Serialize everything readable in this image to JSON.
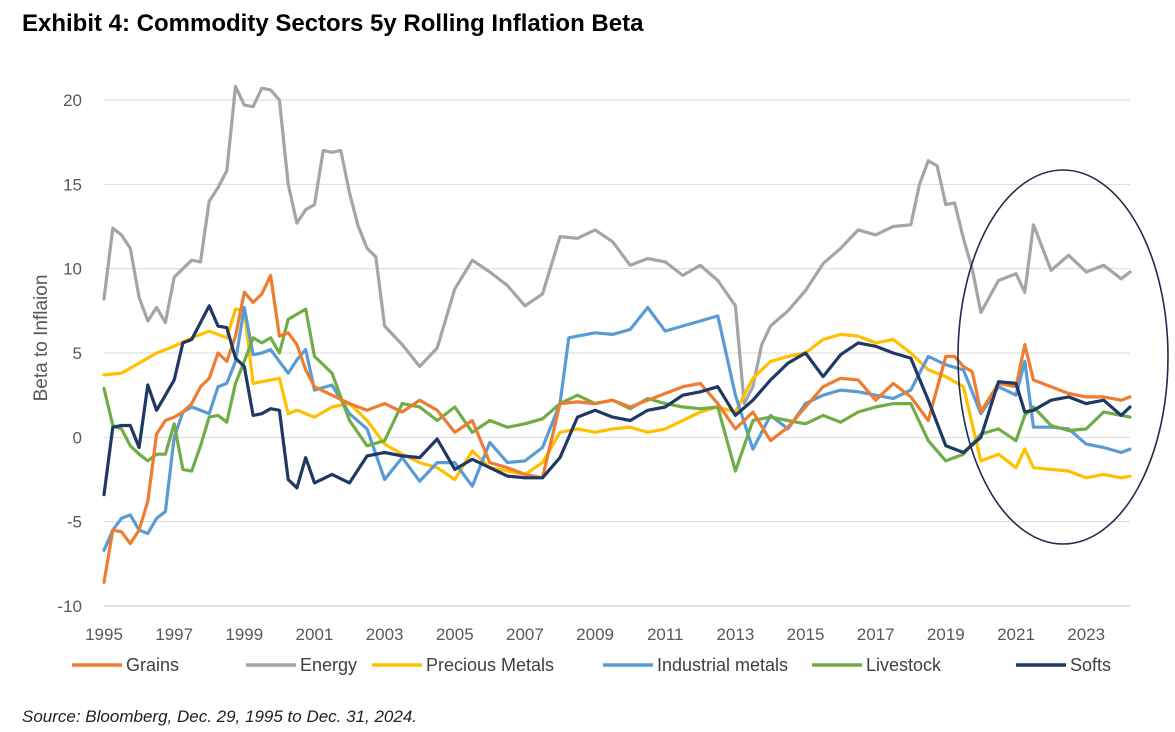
{
  "chart_data": {
    "type": "line",
    "title": "Exhibit 4: Commodity Sectors 5y Rolling Inflation Beta",
    "xlabel": "",
    "ylabel": "Beta to Inflaion",
    "source": "Source: Bloomberg, Dec. 29, 1995 to Dec. 31, 2024.",
    "xlim": [
      1995,
      2024.25
    ],
    "ylim": [
      -10,
      20
    ],
    "xticks": [
      "1995",
      "1997",
      "1999",
      "2001",
      "2003",
      "2005",
      "2007",
      "2009",
      "2011",
      "2013",
      "2015",
      "2017",
      "2019",
      "2021",
      "2023"
    ],
    "yticks": [
      "-10",
      "-5",
      "0",
      "5",
      "10",
      "15",
      "20"
    ],
    "grid": "horizontal",
    "legend_position": "bottom",
    "annotation": "ellipse highlighting 2019-2024 period",
    "series": [
      {
        "name": "Grains",
        "color": "#ED7D31",
        "x": [
          1995,
          1995.25,
          1995.5,
          1995.75,
          1996,
          1996.25,
          1996.5,
          1996.75,
          1997,
          1997.25,
          1997.5,
          1997.75,
          1998,
          1998.25,
          1998.5,
          1998.75,
          1999,
          1999.25,
          1999.5,
          1999.75,
          2000,
          2000.25,
          2000.5,
          2000.75,
          2001,
          2001.5,
          2002,
          2002.5,
          2003,
          2003.5,
          2004,
          2004.5,
          2005,
          2005.5,
          2006,
          2006.5,
          2007,
          2007.5,
          2008,
          2008.5,
          2009,
          2009.5,
          2010,
          2010.5,
          2011,
          2011.5,
          2012,
          2012.5,
          2013,
          2013.5,
          2014,
          2014.5,
          2015,
          2015.5,
          2016,
          2016.5,
          2017,
          2017.5,
          2018,
          2018.5,
          2019,
          2019.25,
          2019.5,
          2019.75,
          2020,
          2020.5,
          2021,
          2021.25,
          2021.5,
          2022,
          2022.5,
          2023,
          2023.5,
          2024,
          2024.25
        ],
        "values": [
          -8.6,
          -5.5,
          -5.6,
          -6.3,
          -5.5,
          -3.8,
          0.2,
          1.0,
          1.2,
          1.5,
          2.0,
          3.0,
          3.5,
          5.0,
          4.5,
          6.0,
          8.6,
          8.0,
          8.5,
          9.6,
          6.0,
          6.2,
          5.5,
          4.0,
          3.0,
          2.5,
          2.0,
          1.6,
          2.0,
          1.5,
          2.2,
          1.6,
          0.3,
          1.0,
          -1.5,
          -1.8,
          -2.2,
          -2.4,
          2.0,
          2.1,
          2.0,
          2.2,
          1.8,
          2.2,
          2.6,
          3.0,
          3.2,
          2.0,
          0.5,
          1.5,
          -0.2,
          0.6,
          1.8,
          3.0,
          3.5,
          3.4,
          2.2,
          3.2,
          2.4,
          1.0,
          4.8,
          4.8,
          4.2,
          3.9,
          1.5,
          3.2,
          3.0,
          5.5,
          3.4,
          3.0,
          2.6,
          2.4,
          2.4,
          2.2,
          2.4
        ]
      },
      {
        "name": "Energy",
        "color": "#A5A5A5",
        "x": [
          1995,
          1995.25,
          1995.5,
          1995.75,
          1996,
          1996.25,
          1996.5,
          1996.75,
          1997,
          1997.25,
          1997.5,
          1997.75,
          1998,
          1998.25,
          1998.5,
          1998.75,
          1999,
          1999.25,
          1999.5,
          1999.75,
          2000,
          2000.25,
          2000.5,
          2000.75,
          2001,
          2001.25,
          2001.5,
          2001.75,
          2002,
          2002.25,
          2002.5,
          2002.75,
          2003,
          2003.5,
          2004,
          2004.5,
          2005,
          2005.5,
          2006,
          2006.5,
          2007,
          2007.5,
          2008,
          2008.5,
          2009,
          2009.5,
          2010,
          2010.5,
          2011,
          2011.5,
          2012,
          2012.5,
          2013,
          2013.25,
          2013.5,
          2013.75,
          2014,
          2014.5,
          2015,
          2015.5,
          2016,
          2016.5,
          2017,
          2017.5,
          2018,
          2018.25,
          2018.5,
          2018.75,
          2019,
          2019.25,
          2019.5,
          2019.75,
          2020,
          2020.5,
          2021,
          2021.25,
          2021.5,
          2022,
          2022.5,
          2023,
          2023.5,
          2024,
          2024.25
        ],
        "values": [
          8.2,
          12.4,
          12.0,
          11.2,
          8.3,
          6.9,
          7.7,
          6.8,
          9.5,
          10.0,
          10.5,
          10.4,
          14.0,
          14.8,
          15.8,
          20.8,
          19.7,
          19.6,
          20.7,
          20.6,
          20.0,
          15.0,
          12.7,
          13.5,
          13.8,
          17.0,
          16.9,
          17.0,
          14.5,
          12.5,
          11.2,
          10.7,
          6.6,
          5.5,
          4.2,
          5.3,
          8.8,
          10.5,
          9.8,
          9.0,
          7.8,
          8.5,
          11.9,
          11.8,
          12.3,
          11.6,
          10.2,
          10.6,
          10.4,
          9.6,
          10.2,
          9.3,
          7.8,
          2.0,
          3.0,
          5.5,
          6.6,
          7.5,
          8.7,
          10.3,
          11.2,
          12.3,
          12.0,
          12.5,
          12.6,
          15.0,
          16.4,
          16.1,
          13.8,
          13.9,
          11.8,
          10.0,
          7.4,
          9.3,
          9.7,
          8.6,
          12.6,
          9.9,
          10.8,
          9.8,
          10.2,
          9.4,
          9.8
        ]
      },
      {
        "name": "Precious Metals",
        "color": "#FFC000",
        "x": [
          1995,
          1995.5,
          1996,
          1996.5,
          1997,
          1997.5,
          1998,
          1998.5,
          1998.75,
          1999,
          1999.25,
          1999.5,
          2000,
          2000.25,
          2000.5,
          2001,
          2001.5,
          2002,
          2002.5,
          2003,
          2003.5,
          2004,
          2004.5,
          2005,
          2005.5,
          2006,
          2006.5,
          2007,
          2007.5,
          2008,
          2008.5,
          2009,
          2009.5,
          2010,
          2010.5,
          2011,
          2011.5,
          2012,
          2012.5,
          2013,
          2013.5,
          2014,
          2014.5,
          2015,
          2015.5,
          2016,
          2016.5,
          2017,
          2017.5,
          2018,
          2018.5,
          2019,
          2019.5,
          2020,
          2020.5,
          2021,
          2021.25,
          2021.5,
          2022,
          2022.5,
          2023,
          2023.5,
          2024,
          2024.25
        ],
        "values": [
          3.7,
          3.8,
          4.4,
          5.0,
          5.4,
          5.9,
          6.3,
          5.9,
          7.6,
          7.5,
          3.2,
          3.3,
          3.5,
          1.4,
          1.6,
          1.2,
          1.8,
          2.0,
          1.0,
          -0.4,
          -1.0,
          -1.5,
          -1.8,
          -2.5,
          -0.8,
          -1.8,
          -2.0,
          -2.2,
          -1.5,
          0.3,
          0.5,
          0.3,
          0.5,
          0.6,
          0.3,
          0.5,
          1.0,
          1.5,
          1.8,
          1.5,
          3.5,
          4.5,
          4.8,
          5.0,
          5.8,
          6.1,
          6.0,
          5.6,
          5.8,
          5.0,
          4.0,
          3.6,
          3.0,
          -1.4,
          -1.0,
          -1.8,
          -0.7,
          -1.8,
          -1.9,
          -2.0,
          -2.4,
          -2.2,
          -2.4,
          -2.3
        ]
      },
      {
        "name": "Industrial metals",
        "color": "#5B9BD5",
        "x": [
          1995,
          1995.25,
          1995.5,
          1995.75,
          1996,
          1996.25,
          1996.5,
          1996.75,
          1997,
          1997.25,
          1997.5,
          1997.75,
          1998,
          1998.25,
          1998.5,
          1998.75,
          1999,
          1999.25,
          1999.5,
          1999.75,
          2000,
          2000.25,
          2000.5,
          2000.75,
          2001,
          2001.5,
          2002,
          2002.5,
          2003,
          2003.5,
          2004,
          2004.5,
          2005,
          2005.5,
          2006,
          2006.5,
          2007,
          2007.5,
          2008,
          2008.25,
          2008.5,
          2009,
          2009.5,
          2010,
          2010.5,
          2011,
          2011.5,
          2012,
          2012.5,
          2013,
          2013.5,
          2014,
          2014.5,
          2015,
          2015.5,
          2016,
          2016.5,
          2017,
          2017.5,
          2018,
          2018.5,
          2019,
          2019.5,
          2020,
          2020.5,
          2021,
          2021.25,
          2021.5,
          2022,
          2022.5,
          2023,
          2023.5,
          2024,
          2024.25
        ],
        "values": [
          -6.7,
          -5.5,
          -4.8,
          -4.6,
          -5.5,
          -5.7,
          -4.8,
          -4.4,
          0.0,
          1.5,
          1.8,
          1.6,
          1.4,
          3.0,
          3.2,
          4.5,
          7.7,
          4.9,
          5.0,
          5.2,
          4.5,
          3.8,
          4.6,
          5.2,
          2.8,
          3.1,
          1.4,
          0.5,
          -2.5,
          -1.2,
          -2.6,
          -1.5,
          -1.5,
          -2.9,
          -0.3,
          -1.5,
          -1.4,
          -0.6,
          2.0,
          5.9,
          6.0,
          6.2,
          6.1,
          6.4,
          7.7,
          6.3,
          6.6,
          6.9,
          7.2,
          2.5,
          -0.7,
          1.3,
          0.5,
          2.0,
          2.5,
          2.8,
          2.7,
          2.5,
          2.3,
          2.8,
          4.8,
          4.3,
          4.0,
          1.4,
          3.0,
          2.5,
          4.5,
          0.6,
          0.6,
          0.5,
          -0.4,
          -0.6,
          -0.9,
          -0.7
        ]
      },
      {
        "name": "Livestock",
        "color": "#70AD47",
        "x": [
          1995,
          1995.25,
          1995.5,
          1995.75,
          1996,
          1996.25,
          1996.5,
          1996.75,
          1997,
          1997.25,
          1997.5,
          1997.75,
          1998,
          1998.25,
          1998.5,
          1998.75,
          1999,
          1999.25,
          1999.5,
          1999.75,
          2000,
          2000.25,
          2000.5,
          2000.75,
          2001,
          2001.5,
          2002,
          2002.5,
          2003,
          2003.5,
          2004,
          2004.5,
          2005,
          2005.5,
          2006,
          2006.5,
          2007,
          2007.5,
          2008,
          2008.5,
          2009,
          2009.5,
          2010,
          2010.5,
          2011,
          2011.5,
          2012,
          2012.5,
          2013,
          2013.5,
          2014,
          2014.5,
          2015,
          2015.5,
          2016,
          2016.5,
          2017,
          2017.5,
          2018,
          2018.5,
          2019,
          2019.5,
          2020,
          2020.5,
          2021,
          2021.25,
          2021.5,
          2022,
          2022.5,
          2023,
          2023.5,
          2024,
          2024.25
        ],
        "values": [
          2.9,
          0.7,
          0.5,
          -0.5,
          -1.0,
          -1.4,
          -1.0,
          -1.0,
          0.8,
          -1.9,
          -2.0,
          -0.5,
          1.2,
          1.3,
          0.9,
          3.2,
          4.5,
          5.9,
          5.6,
          5.9,
          5.0,
          7.0,
          7.3,
          7.6,
          4.8,
          3.8,
          1.0,
          -0.5,
          -0.2,
          2.0,
          1.8,
          1.0,
          1.8,
          0.3,
          1.0,
          0.6,
          0.8,
          1.1,
          2.0,
          2.5,
          2.0,
          2.2,
          1.7,
          2.3,
          2.0,
          1.8,
          1.7,
          1.8,
          -2.0,
          1.0,
          1.2,
          1.0,
          0.8,
          1.3,
          0.9,
          1.5,
          1.8,
          2.0,
          2.0,
          -0.2,
          -1.4,
          -1.0,
          0.2,
          0.5,
          -0.2,
          1.3,
          1.8,
          0.7,
          0.4,
          0.5,
          1.5,
          1.3,
          1.2
        ]
      },
      {
        "name": "Softs",
        "color": "#203864",
        "x": [
          1995,
          1995.25,
          1995.5,
          1995.75,
          1996,
          1996.25,
          1996.5,
          1996.75,
          1997,
          1997.25,
          1997.5,
          1997.75,
          1998,
          1998.25,
          1998.5,
          1998.75,
          1999,
          1999.25,
          1999.5,
          1999.75,
          2000,
          2000.25,
          2000.5,
          2000.75,
          2001,
          2001.5,
          2002,
          2002.5,
          2003,
          2003.5,
          2004,
          2004.5,
          2005,
          2005.5,
          2006,
          2006.5,
          2007,
          2007.5,
          2008,
          2008.5,
          2009,
          2009.5,
          2010,
          2010.5,
          2011,
          2011.5,
          2012,
          2012.5,
          2013,
          2013.5,
          2014,
          2014.5,
          2015,
          2015.5,
          2016,
          2016.5,
          2017,
          2017.5,
          2018,
          2018.5,
          2019,
          2019.5,
          2020,
          2020.5,
          2021,
          2021.25,
          2021.5,
          2022,
          2022.5,
          2023,
          2023.5,
          2024,
          2024.25
        ],
        "values": [
          -3.4,
          0.6,
          0.7,
          0.7,
          -0.6,
          3.1,
          1.6,
          2.5,
          3.4,
          5.6,
          5.8,
          6.8,
          7.8,
          6.6,
          6.5,
          4.7,
          4.2,
          1.3,
          1.4,
          1.7,
          1.6,
          -2.5,
          -3.0,
          -1.2,
          -2.7,
          -2.2,
          -2.7,
          -1.1,
          -0.9,
          -1.1,
          -1.2,
          -0.1,
          -1.9,
          -1.3,
          -1.8,
          -2.3,
          -2.4,
          -2.4,
          -1.2,
          1.2,
          1.6,
          1.2,
          1.0,
          1.6,
          1.8,
          2.5,
          2.7,
          3.0,
          1.3,
          2.2,
          3.4,
          4.4,
          5.0,
          3.6,
          4.9,
          5.6,
          5.4,
          5.0,
          4.7,
          2.2,
          -0.5,
          -0.9,
          0.0,
          3.3,
          3.2,
          1.5,
          1.6,
          2.2,
          2.4,
          2.0,
          2.2,
          1.3,
          1.8
        ]
      }
    ]
  }
}
